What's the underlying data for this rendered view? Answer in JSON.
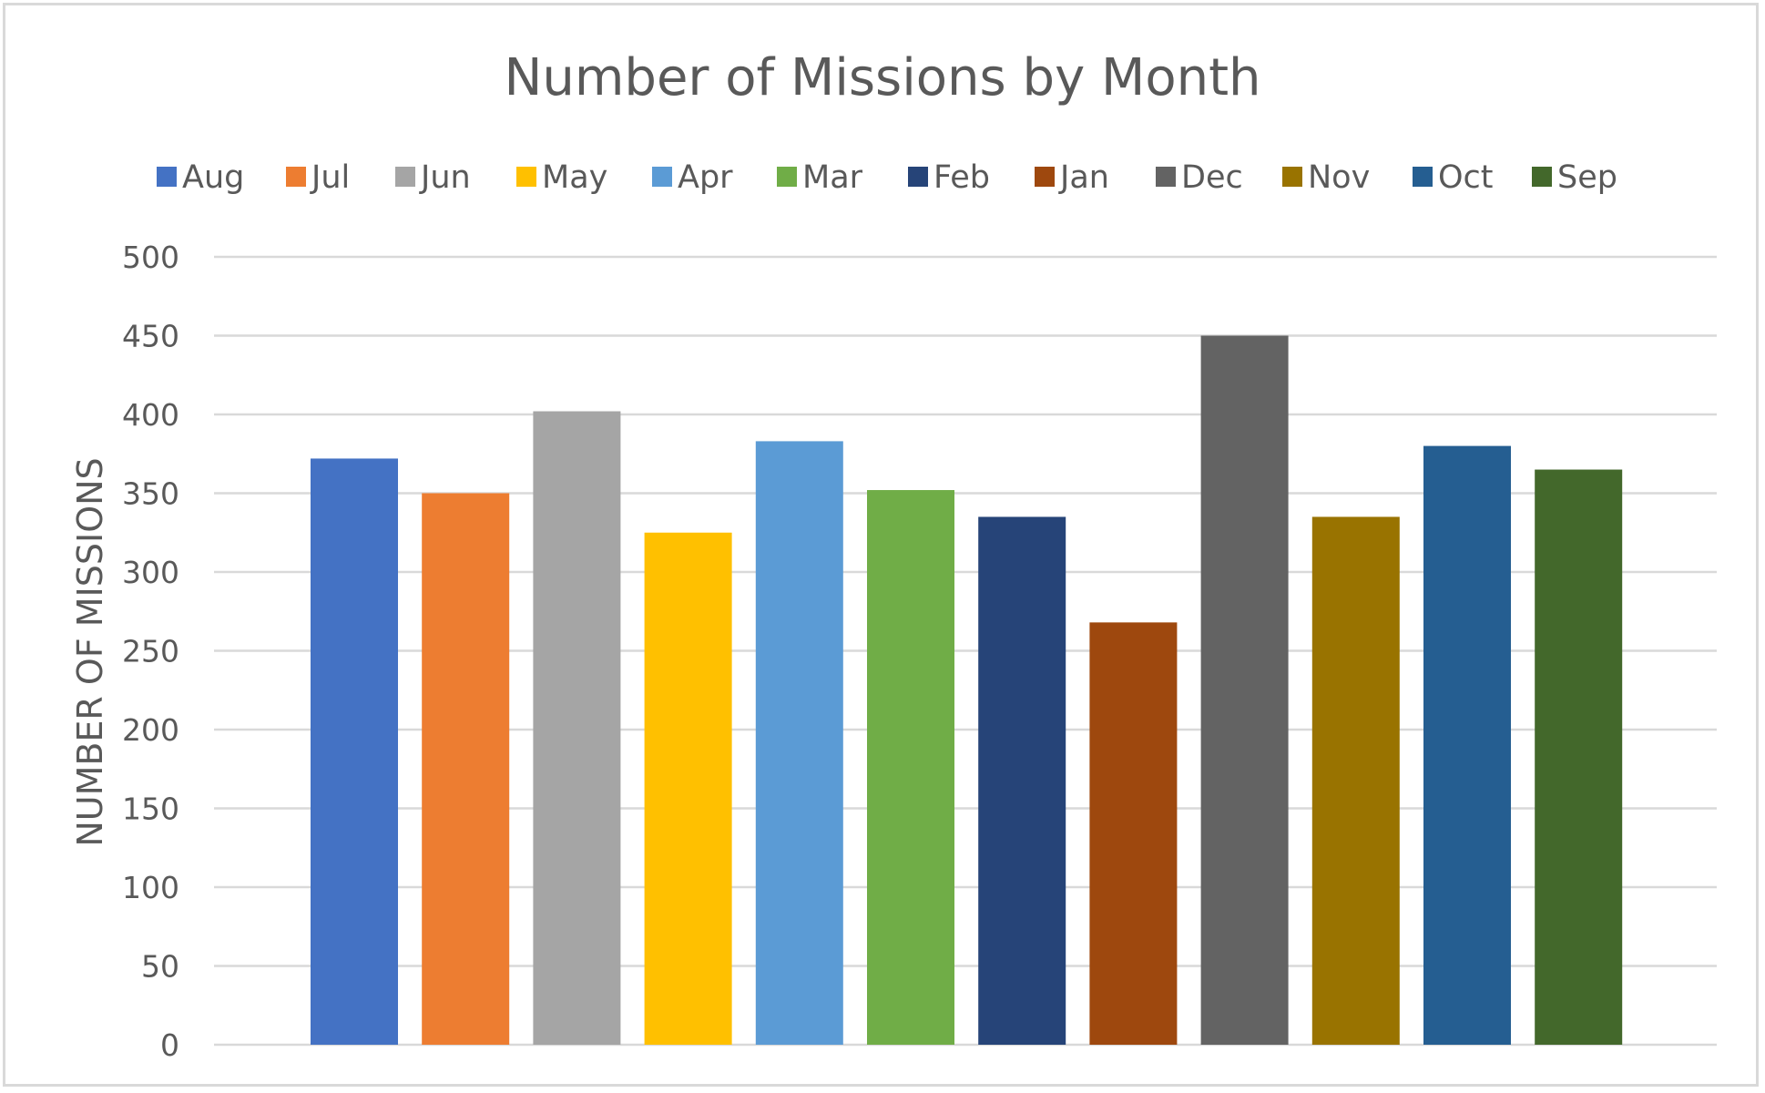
{
  "chart_data": {
    "type": "bar",
    "title": "Number of Missions by Month",
    "xlabel": "",
    "ylabel": "NUMBER OF MISSIONS",
    "ylim": [
      0,
      500
    ],
    "yticks": [
      0,
      50,
      100,
      150,
      200,
      250,
      300,
      350,
      400,
      450,
      500
    ],
    "grid": true,
    "legend_position": "top",
    "series": [
      {
        "name": "Aug",
        "values": [
          372
        ],
        "color": "#4472C4"
      },
      {
        "name": "Jul",
        "values": [
          350
        ],
        "color": "#ED7D31"
      },
      {
        "name": "Jun",
        "values": [
          402
        ],
        "color": "#A5A5A5"
      },
      {
        "name": "May",
        "values": [
          325
        ],
        "color": "#FFC000"
      },
      {
        "name": "Apr",
        "values": [
          383
        ],
        "color": "#5B9BD5"
      },
      {
        "name": "Mar",
        "values": [
          352
        ],
        "color": "#70AD47"
      },
      {
        "name": "Feb",
        "values": [
          335
        ],
        "color": "#264478"
      },
      {
        "name": "Jan",
        "values": [
          268
        ],
        "color": "#9E480E"
      },
      {
        "name": "Dec",
        "values": [
          450
        ],
        "color": "#636363"
      },
      {
        "name": "Nov",
        "values": [
          335
        ],
        "color": "#997300"
      },
      {
        "name": "Oct",
        "values": [
          380
        ],
        "color": "#255E91"
      },
      {
        "name": "Sep",
        "values": [
          365
        ],
        "color": "#43682B"
      }
    ]
  }
}
